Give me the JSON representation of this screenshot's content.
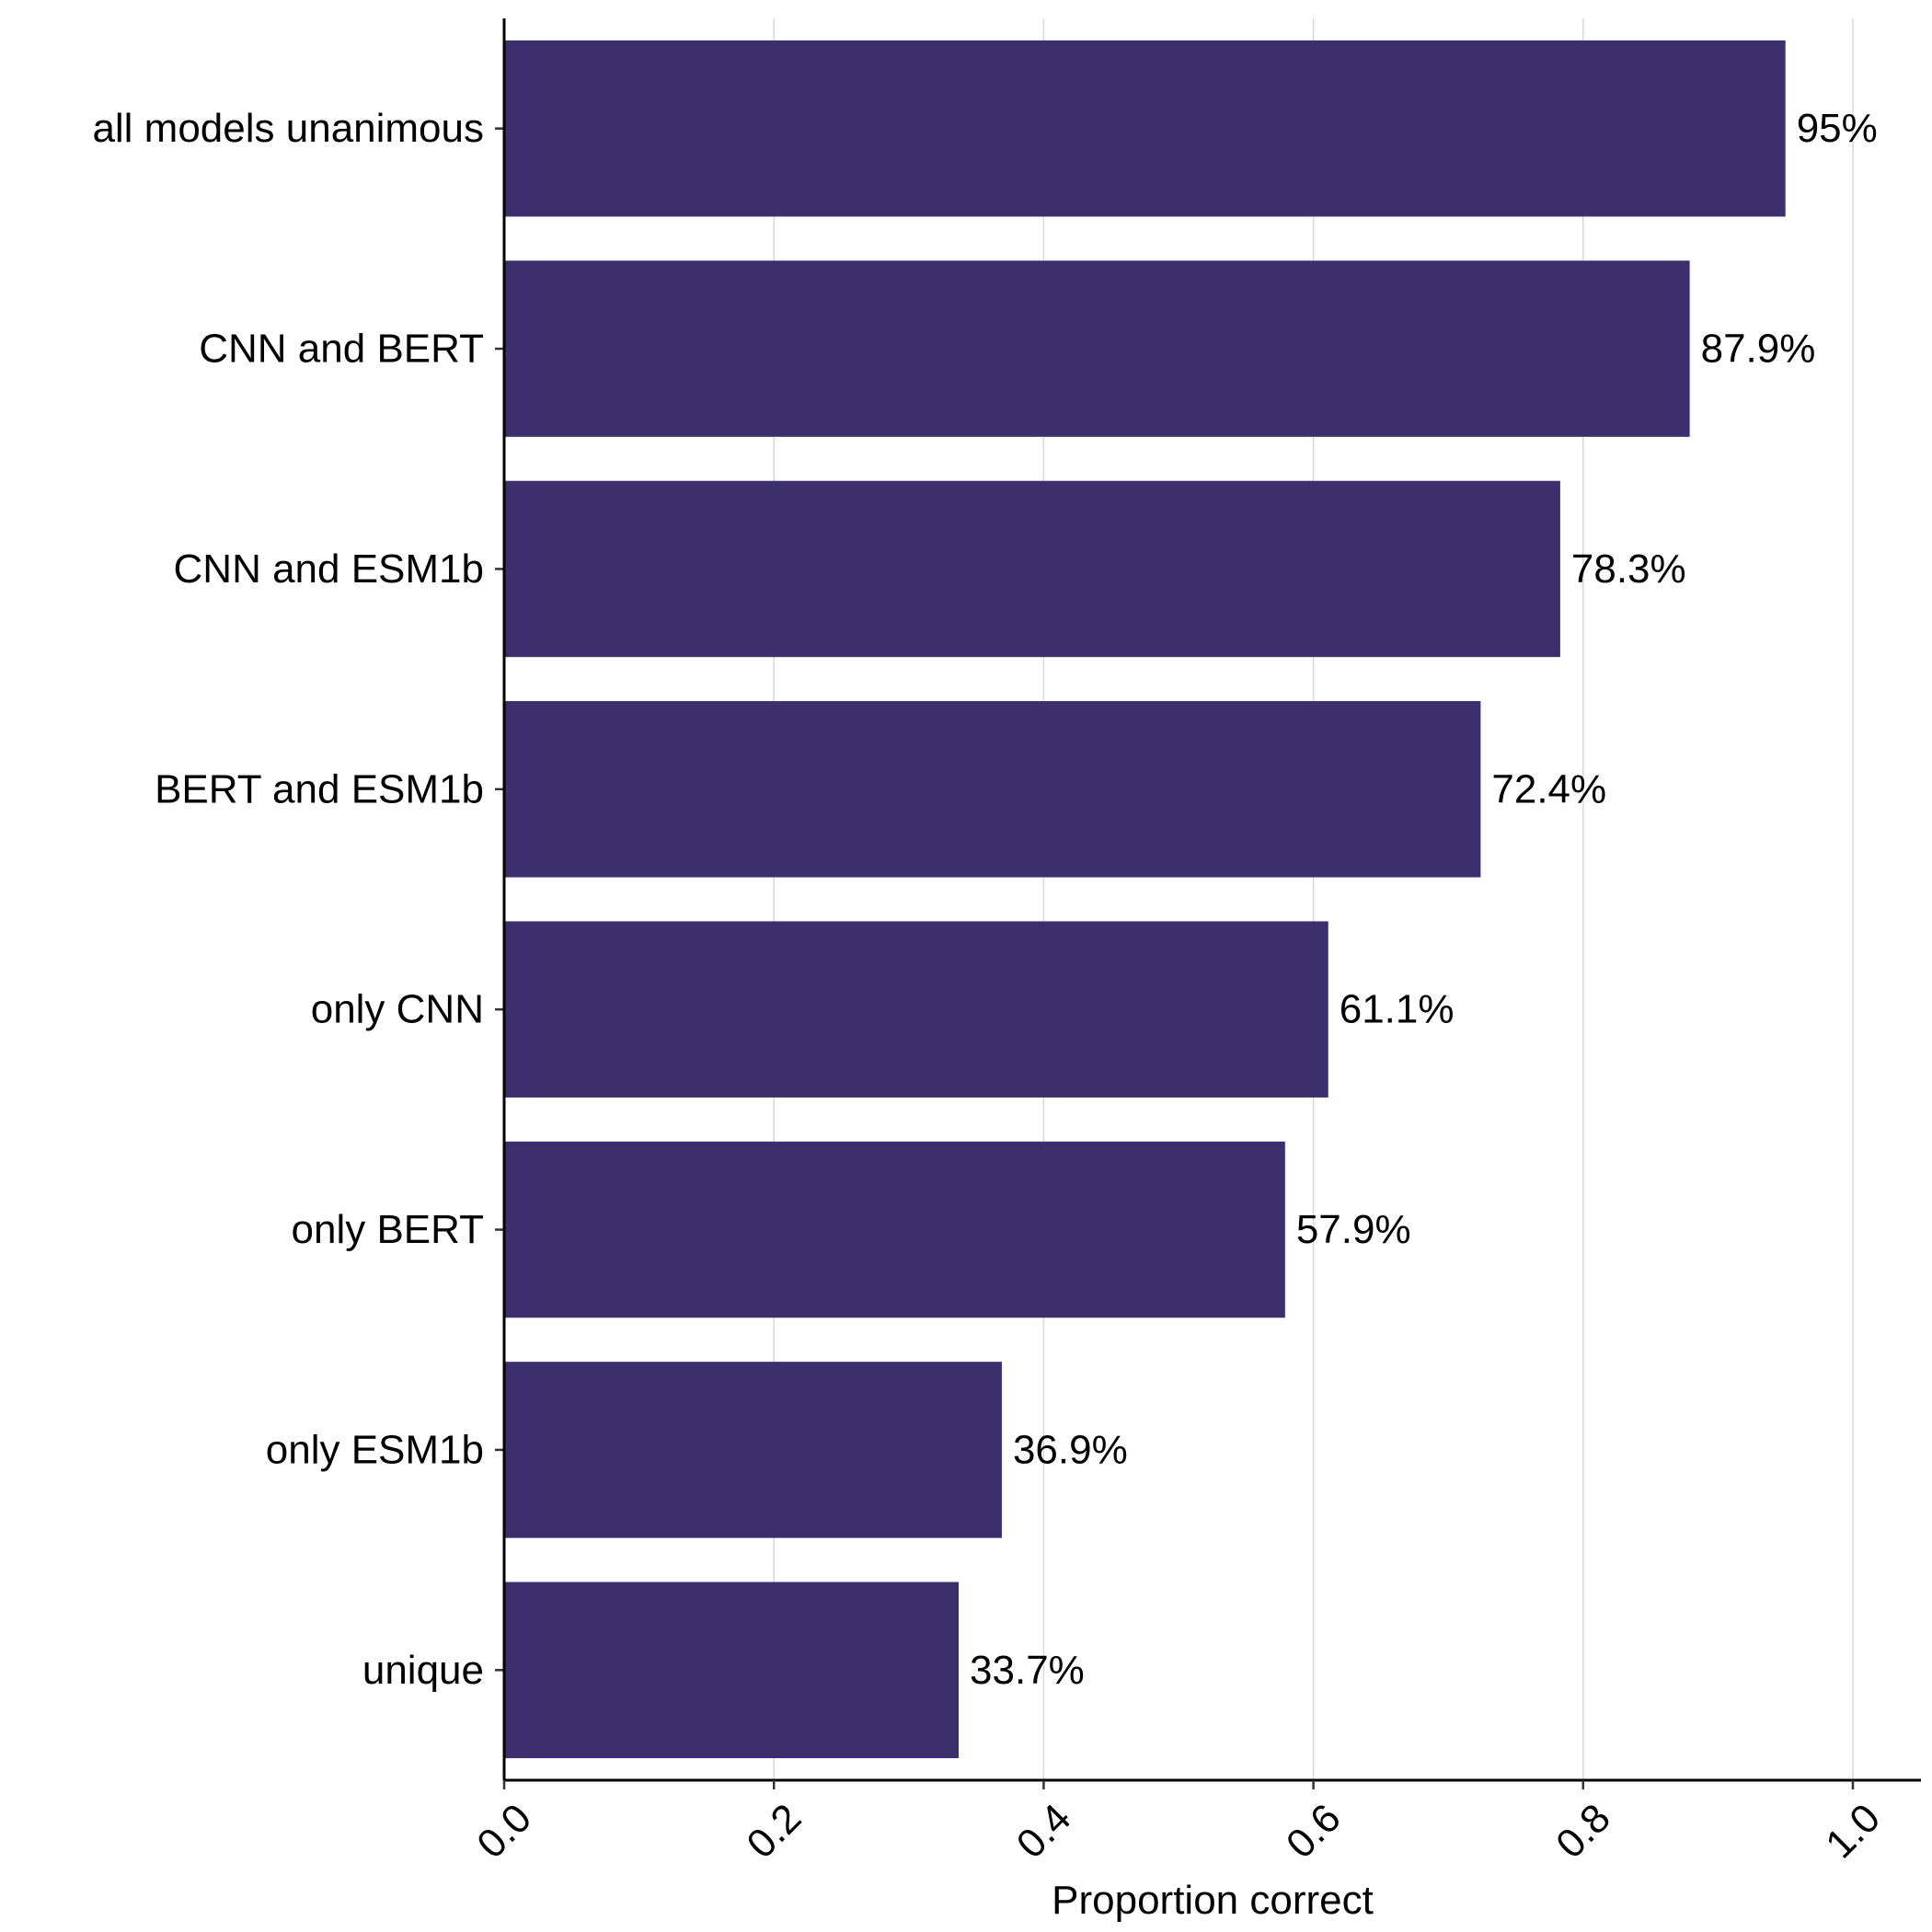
{
  "chart_data": {
    "type": "bar",
    "orientation": "horizontal",
    "title": "",
    "xlabel": "Proportion correct",
    "ylabel": "",
    "xlim": [
      0,
      1.05
    ],
    "xticks": [
      0.0,
      0.2,
      0.4,
      0.6,
      0.8,
      1.0
    ],
    "xtick_labels": [
      "0.0",
      "0.2",
      "0.4",
      "0.6",
      "0.8",
      "1.0"
    ],
    "grid": "vertical major gridlines",
    "legend": "none",
    "bar_color": "#3b2f6e",
    "grid_color": "#d9d9d9",
    "categories": [
      "all models unanimous",
      "CNN and BERT",
      "CNN and ESM1b",
      "BERT and ESM1b",
      "only CNN",
      "only BERT",
      "only ESM1b",
      "unique"
    ],
    "values": [
      0.95,
      0.879,
      0.783,
      0.724,
      0.611,
      0.579,
      0.369,
      0.337
    ],
    "value_labels": [
      "95%",
      "87.9%",
      "78.3%",
      "72.4%",
      "61.1%",
      "57.9%",
      "36.9%",
      "33.7%"
    ]
  }
}
